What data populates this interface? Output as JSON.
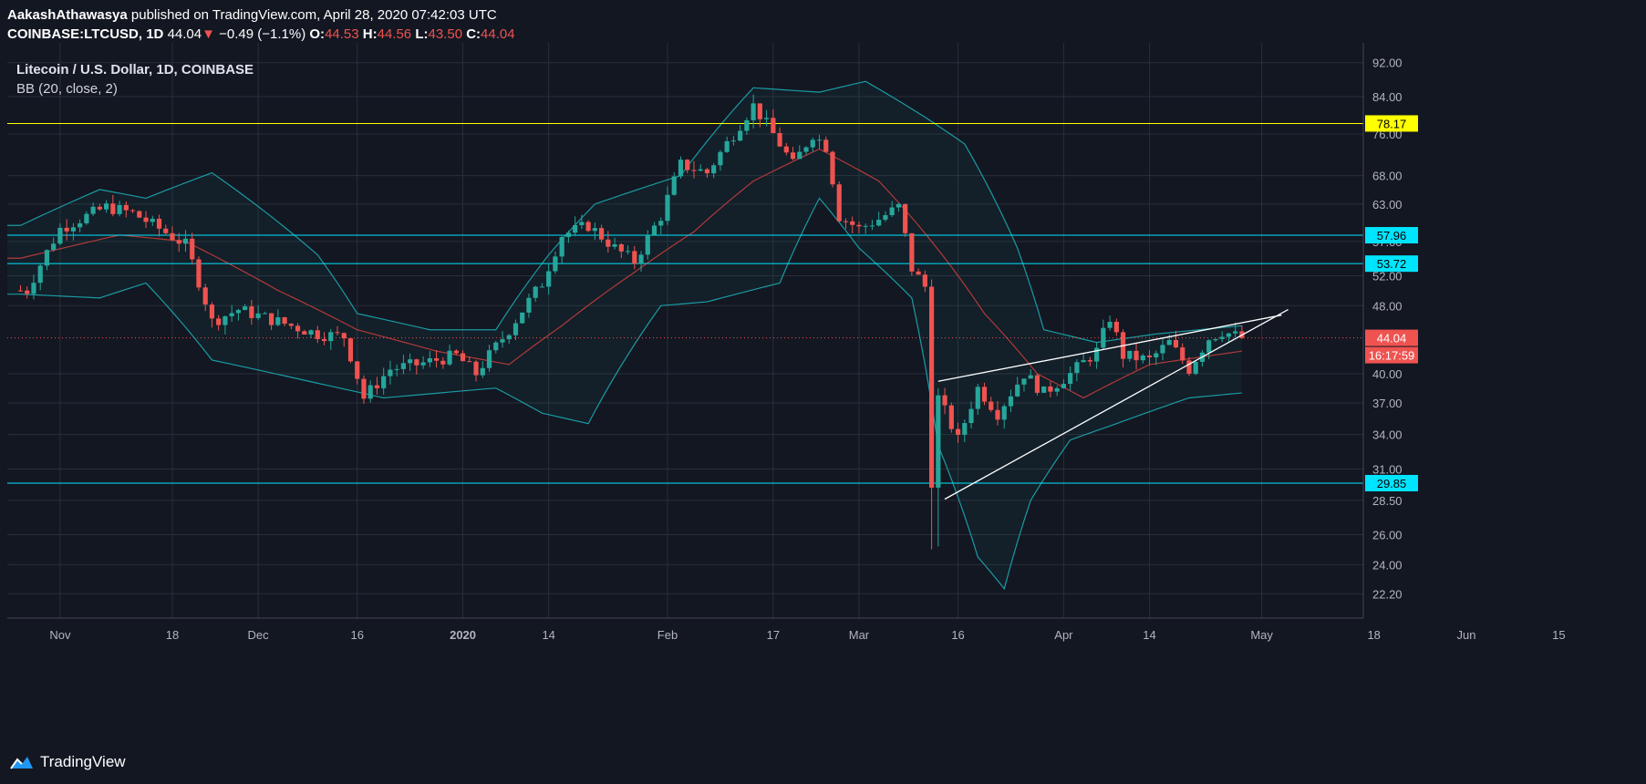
{
  "header": {
    "author": "AakashAthawasya",
    "published_text": "published on TradingView.com, April 28, 2020 07:42:03 UTC",
    "symbol": "COINBASE:LTCUSD, 1D",
    "last": "44.04",
    "change_arrow": "▼",
    "change": "−0.49 (−1.1%)",
    "o_label": "O:",
    "o_value": "44.53",
    "h_label": "H:",
    "h_value": "44.56",
    "l_label": "L:",
    "l_value": "43.50",
    "c_label": "C:",
    "c_value": "44.04"
  },
  "legend": {
    "title": "Litecoin / U.S. Dollar, 1D, COINBASE",
    "indicator": "BB (20, close, 2)"
  },
  "footer": {
    "brand": "TradingView"
  },
  "colors": {
    "background": "#131722",
    "up": "#26a69a",
    "down": "#ef5350",
    "bb_band": "#1a9ba3",
    "bb_basis": "#b23a3a",
    "yellow_level": "#ffff00",
    "cyan_level": "#00e5ff"
  },
  "chart_data": {
    "type": "candlestick",
    "y_scale": "log",
    "ylim": [
      21.0,
      95.0
    ],
    "x_ticks": [
      "Nov",
      "18",
      "Dec",
      "16",
      "2020",
      "14",
      "Feb",
      "17",
      "Mar",
      "16",
      "Apr",
      "14",
      "May",
      "18",
      "Jun",
      "15"
    ],
    "y_ticks": [
      "92.00",
      "84.00",
      "76.00",
      "68.00",
      "63.00",
      "57.00",
      "52.00",
      "48.00",
      "40.00",
      "37.00",
      "34.00",
      "31.00",
      "28.50",
      "26.00",
      "24.00",
      "22.20"
    ],
    "last_price_label": "44.04",
    "countdown_label": "16:17:59",
    "horizontal_levels": [
      {
        "value": 78.17,
        "label": "78.17",
        "color": "yellow"
      },
      {
        "value": 57.96,
        "label": "57.96",
        "color": "cyan"
      },
      {
        "value": 53.72,
        "label": "53.72",
        "color": "cyan"
      },
      {
        "value": 29.85,
        "label": "29.85",
        "color": "cyan"
      }
    ],
    "price_anchors": [
      {
        "date": "2019-10-27",
        "close": 50.0
      },
      {
        "date": "2019-11-01",
        "close": 59.0
      },
      {
        "date": "2019-11-08",
        "close": 62.5
      },
      {
        "date": "2019-11-12",
        "close": 61.5
      },
      {
        "date": "2019-11-16",
        "close": 59.0
      },
      {
        "date": "2019-11-20",
        "close": 56.5
      },
      {
        "date": "2019-11-24",
        "close": 46.0
      },
      {
        "date": "2019-11-28",
        "close": 47.5
      },
      {
        "date": "2019-12-04",
        "close": 46.0
      },
      {
        "date": "2019-12-10",
        "close": 44.5
      },
      {
        "date": "2019-12-14",
        "close": 44.2
      },
      {
        "date": "2019-12-17",
        "close": 37.5
      },
      {
        "date": "2019-12-21",
        "close": 40.5
      },
      {
        "date": "2019-12-25",
        "close": 41.0
      },
      {
        "date": "2019-12-31",
        "close": 42.0
      },
      {
        "date": "2020-01-03",
        "close": 40.0
      },
      {
        "date": "2020-01-08",
        "close": 45.0
      },
      {
        "date": "2020-01-13",
        "close": 51.0
      },
      {
        "date": "2020-01-16",
        "close": 58.0
      },
      {
        "date": "2020-01-20",
        "close": 59.5
      },
      {
        "date": "2020-01-24",
        "close": 56.0
      },
      {
        "date": "2020-01-27",
        "close": 54.0
      },
      {
        "date": "2020-01-31",
        "close": 61.0
      },
      {
        "date": "2020-02-03",
        "close": 70.0
      },
      {
        "date": "2020-02-07",
        "close": 68.5
      },
      {
        "date": "2020-02-11",
        "close": 76.0
      },
      {
        "date": "2020-02-14",
        "close": 82.0
      },
      {
        "date": "2020-02-17",
        "close": 76.0
      },
      {
        "date": "2020-02-20",
        "close": 70.0
      },
      {
        "date": "2020-02-23",
        "close": 76.0
      },
      {
        "date": "2020-02-25",
        "close": 73.5
      },
      {
        "date": "2020-02-27",
        "close": 61.0
      },
      {
        "date": "2020-03-01",
        "close": 59.0
      },
      {
        "date": "2020-03-04",
        "close": 60.5
      },
      {
        "date": "2020-03-07",
        "close": 62.5
      },
      {
        "date": "2020-03-09",
        "close": 53.0
      },
      {
        "date": "2020-03-11",
        "close": 50.5
      },
      {
        "date": "2020-03-12",
        "close": 30.0
      },
      {
        "date": "2020-03-13",
        "close": 37.5
      },
      {
        "date": "2020-03-16",
        "close": 33.5
      },
      {
        "date": "2020-03-19",
        "close": 38.5
      },
      {
        "date": "2020-03-22",
        "close": 36.0
      },
      {
        "date": "2020-03-26",
        "close": 40.0
      },
      {
        "date": "2020-03-29",
        "close": 38.0
      },
      {
        "date": "2020-04-02",
        "close": 40.0
      },
      {
        "date": "2020-04-06",
        "close": 42.5
      },
      {
        "date": "2020-04-08",
        "close": 46.5
      },
      {
        "date": "2020-04-10",
        "close": 42.0
      },
      {
        "date": "2020-04-14",
        "close": 41.5
      },
      {
        "date": "2020-04-17",
        "close": 43.5
      },
      {
        "date": "2020-04-20",
        "close": 40.5
      },
      {
        "date": "2020-04-23",
        "close": 44.0
      },
      {
        "date": "2020-04-25",
        "close": 44.8
      },
      {
        "date": "2020-04-28",
        "close": 44.04
      }
    ],
    "bb_upper_anchors": [
      {
        "date": "2019-10-26",
        "value": 59.5
      },
      {
        "date": "2019-11-07",
        "value": 65.5
      },
      {
        "date": "2019-11-14",
        "value": 64.0
      },
      {
        "date": "2019-11-24",
        "value": 68.5
      },
      {
        "date": "2019-12-10",
        "value": 55.0
      },
      {
        "date": "2019-12-16",
        "value": 47.0
      },
      {
        "date": "2019-12-27",
        "value": 45.0
      },
      {
        "date": "2020-01-06",
        "value": 45.0
      },
      {
        "date": "2020-01-14",
        "value": 55.0
      },
      {
        "date": "2020-01-21",
        "value": 63.0
      },
      {
        "date": "2020-02-03",
        "value": 68.0
      },
      {
        "date": "2020-02-14",
        "value": 86.0
      },
      {
        "date": "2020-02-24",
        "value": 85.0
      },
      {
        "date": "2020-03-02",
        "value": 87.5
      },
      {
        "date": "2020-03-11",
        "value": 79.5
      },
      {
        "date": "2020-03-17",
        "value": 74.0
      },
      {
        "date": "2020-03-25",
        "value": 56.0
      },
      {
        "date": "2020-03-29",
        "value": 45.0
      },
      {
        "date": "2020-04-06",
        "value": 43.5
      },
      {
        "date": "2020-04-15",
        "value": 44.5
      },
      {
        "date": "2020-04-28",
        "value": 45.5
      }
    ],
    "bb_lower_anchors": [
      {
        "date": "2019-10-26",
        "value": 49.5
      },
      {
        "date": "2019-11-07",
        "value": 49.0
      },
      {
        "date": "2019-11-14",
        "value": 51.0
      },
      {
        "date": "2019-11-24",
        "value": 41.5
      },
      {
        "date": "2019-12-10",
        "value": 39.0
      },
      {
        "date": "2019-12-20",
        "value": 37.5
      },
      {
        "date": "2020-01-06",
        "value": 38.5
      },
      {
        "date": "2020-01-13",
        "value": 36.0
      },
      {
        "date": "2020-01-20",
        "value": 35.0
      },
      {
        "date": "2020-01-31",
        "value": 48.0
      },
      {
        "date": "2020-02-07",
        "value": 48.5
      },
      {
        "date": "2020-02-18",
        "value": 51.0
      },
      {
        "date": "2020-02-24",
        "value": 64.0
      },
      {
        "date": "2020-03-01",
        "value": 56.0
      },
      {
        "date": "2020-03-09",
        "value": 49.0
      },
      {
        "date": "2020-03-13",
        "value": 33.0
      },
      {
        "date": "2020-03-19",
        "value": 24.5
      },
      {
        "date": "2020-03-23",
        "value": 22.5
      },
      {
        "date": "2020-03-27",
        "value": 28.5
      },
      {
        "date": "2020-04-02",
        "value": 33.5
      },
      {
        "date": "2020-04-09",
        "value": 35.0
      },
      {
        "date": "2020-04-20",
        "value": 37.5
      },
      {
        "date": "2020-04-28",
        "value": 38.0
      }
    ],
    "bb_basis_anchors": [
      {
        "date": "2019-10-26",
        "value": 54.5
      },
      {
        "date": "2019-11-10",
        "value": 58.0
      },
      {
        "date": "2019-11-20",
        "value": 57.0
      },
      {
        "date": "2019-12-04",
        "value": 50.0
      },
      {
        "date": "2019-12-16",
        "value": 45.0
      },
      {
        "date": "2019-12-28",
        "value": 42.5
      },
      {
        "date": "2020-01-08",
        "value": 41.0
      },
      {
        "date": "2020-01-16",
        "value": 45.5
      },
      {
        "date": "2020-01-27",
        "value": 52.5
      },
      {
        "date": "2020-02-05",
        "value": 58.5
      },
      {
        "date": "2020-02-14",
        "value": 67.0
      },
      {
        "date": "2020-02-24",
        "value": 73.0
      },
      {
        "date": "2020-03-04",
        "value": 67.0
      },
      {
        "date": "2020-03-12",
        "value": 57.0
      },
      {
        "date": "2020-03-20",
        "value": 47.0
      },
      {
        "date": "2020-03-28",
        "value": 40.0
      },
      {
        "date": "2020-04-04",
        "value": 37.5
      },
      {
        "date": "2020-04-14",
        "value": 41.0
      },
      {
        "date": "2020-04-28",
        "value": 42.5
      }
    ],
    "trendlines": [
      {
        "start": {
          "date": "2020-03-13",
          "price": 39.2
        },
        "end": {
          "date": "2020-05-04",
          "price": 46.8
        }
      },
      {
        "start": {
          "date": "2020-03-14",
          "price": 28.6
        },
        "end": {
          "date": "2020-05-05",
          "price": 47.5
        }
      }
    ]
  }
}
